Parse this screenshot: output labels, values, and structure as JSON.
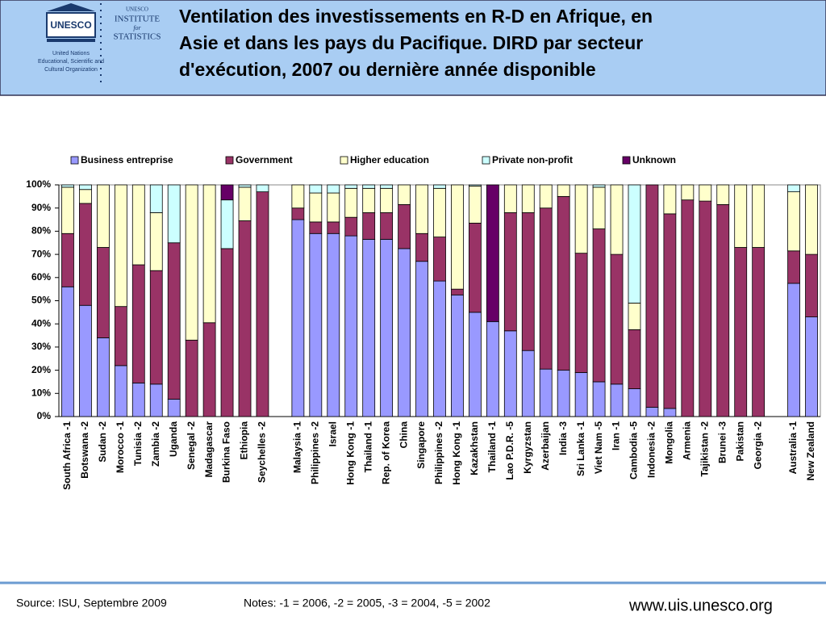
{
  "header": {
    "logo_text": "UNESCO",
    "institute": [
      "UNESCO",
      "INSTITUTE",
      "for",
      "STATISTICS"
    ],
    "organization": [
      "United Nations",
      "Educational, Scientific and",
      "Cultural Organization"
    ],
    "title": [
      "Ventilation des investissements en R-D en Afrique, en",
      "Asie et dans les pays du Pacifique. DIRD par secteur",
      "d'exécution, 2007 ou dernière année disponible"
    ]
  },
  "chart_data": {
    "type": "stacked_bar",
    "categories": [
      "South Africa -1",
      "Botswana -2",
      "Sudan -2",
      "Morocco -1",
      "Tunisia -2",
      "Zambia -2",
      "Uganda",
      "Senegal -2",
      "Madagascar",
      "Burkina Faso",
      "Ethiopia",
      "Seychelles -2",
      null,
      "Malaysia -1",
      "Philippines -2",
      "Israel",
      "Hong Kong -1",
      "Thailand -1",
      "Rep. of Korea",
      "China",
      "Singapore",
      "Philippines -2",
      "Hong Kong -1",
      "Kazakhstan",
      "Thailand -1",
      "Lao P.D.R. -5",
      "Kyrgyzstan",
      "Azerbaijan",
      "India -3",
      "Sri Lanka -1",
      "Viet Nam -5",
      "Iran -1",
      "Cambodia -5",
      "Indonesia -2",
      "Mongolia",
      "Armenia",
      "Tajikistan -2",
      "Brunei -3",
      "Pakistan",
      "Georgia -2",
      null,
      "Australia -1",
      "New Zealand"
    ],
    "series": [
      {
        "name": "Business entreprise",
        "color": "#9999ff",
        "values": [
          56,
          48,
          34,
          22,
          14.5,
          14,
          7.5,
          0,
          0,
          0,
          0,
          0,
          null,
          85,
          79,
          79,
          78,
          76.5,
          76.5,
          72.5,
          67,
          58.5,
          52.5,
          45,
          41,
          37,
          28.5,
          20.5,
          20,
          19,
          15,
          14,
          12,
          4,
          3.5,
          0,
          0,
          0,
          0,
          0,
          null,
          57.5,
          43
        ]
      },
      {
        "name": "Government",
        "color": "#993366",
        "values": [
          23,
          44,
          39,
          25.5,
          51,
          49,
          67.5,
          33,
          40.5,
          72.5,
          84.5,
          97,
          null,
          5,
          5,
          5,
          8,
          11.5,
          11.5,
          19,
          12,
          19,
          2.5,
          38.5,
          0,
          51,
          59.5,
          69.5,
          75,
          51.5,
          66,
          56,
          25.5,
          96,
          84,
          93.5,
          93,
          91.5,
          73,
          73,
          null,
          14,
          27
        ]
      },
      {
        "name": "Higher education",
        "color": "#ffffcc",
        "values": [
          20,
          6,
          27,
          52.5,
          34.5,
          25,
          0,
          67,
          59.5,
          0,
          14.5,
          0,
          null,
          10,
          12.5,
          12.5,
          12.5,
          10.5,
          10.5,
          8.5,
          21,
          21,
          45,
          16,
          0,
          12,
          12,
          10,
          5,
          29.5,
          18,
          30,
          11.5,
          0,
          12.5,
          6.5,
          7,
          8.5,
          27,
          27,
          null,
          25.5,
          30
        ]
      },
      {
        "name": "Private non-profit",
        "color": "#ccffff",
        "values": [
          1,
          2,
          0,
          0,
          0,
          12,
          25,
          0,
          0,
          21,
          1,
          3,
          null,
          0,
          3.5,
          3.5,
          1.5,
          1.5,
          1.5,
          0,
          0,
          1.5,
          0,
          0.5,
          0,
          0,
          0,
          0,
          0,
          0,
          1,
          0,
          51,
          0,
          0,
          0,
          0,
          0,
          0,
          0,
          null,
          3,
          0
        ]
      },
      {
        "name": "Unknown",
        "color": "#660066",
        "values": [
          0,
          0,
          0,
          0,
          0,
          0,
          0,
          0,
          0,
          6.5,
          0,
          0,
          null,
          0,
          0,
          0,
          0,
          0,
          0,
          0,
          0,
          0,
          0,
          0,
          59,
          0,
          0,
          0,
          0,
          0,
          0,
          0,
          0,
          0,
          0,
          0,
          0,
          0,
          0,
          0,
          null,
          0,
          0
        ]
      }
    ],
    "ylim": [
      0,
      100
    ],
    "yticks": [
      {
        "value": 0,
        "label": "0%"
      },
      {
        "value": 10,
        "label": "10%"
      },
      {
        "value": 20,
        "label": "20%"
      },
      {
        "value": 30,
        "label": "30%"
      },
      {
        "value": 40,
        "label": "40%"
      },
      {
        "value": 50,
        "label": "50%"
      },
      {
        "value": 60,
        "label": "60%"
      },
      {
        "value": 70,
        "label": "70%"
      },
      {
        "value": 80,
        "label": "80%"
      },
      {
        "value": 90,
        "label": "90%"
      },
      {
        "value": 100,
        "label": "100%"
      }
    ],
    "grid": false,
    "legend": "top"
  },
  "footer": {
    "source": "Source: ISU, Septembre 2009",
    "notes": "Notes: -1 = 2006, -2 = 2005, -3 = 2004, -5 = 2002",
    "url": "www.uis.unesco.org"
  }
}
